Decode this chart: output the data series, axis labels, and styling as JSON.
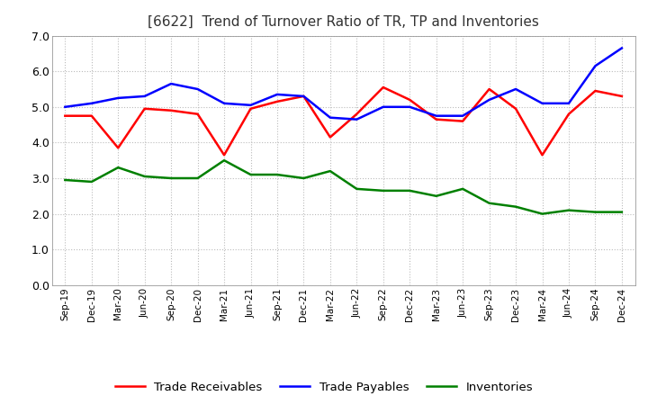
{
  "title": "[6622]  Trend of Turnover Ratio of TR, TP and Inventories",
  "x_labels": [
    "Sep-19",
    "Dec-19",
    "Mar-20",
    "Jun-20",
    "Sep-20",
    "Dec-20",
    "Mar-21",
    "Jun-21",
    "Sep-21",
    "Dec-21",
    "Mar-22",
    "Jun-22",
    "Sep-22",
    "Dec-22",
    "Mar-23",
    "Jun-23",
    "Sep-23",
    "Dec-23",
    "Mar-24",
    "Jun-24",
    "Sep-24",
    "Dec-24"
  ],
  "trade_receivables": [
    4.75,
    4.75,
    3.85,
    4.95,
    4.9,
    4.8,
    3.65,
    4.95,
    5.15,
    5.3,
    4.15,
    4.8,
    5.55,
    5.2,
    4.65,
    4.6,
    5.5,
    4.95,
    3.65,
    4.8,
    5.45,
    5.3
  ],
  "trade_payables": [
    5.0,
    5.1,
    5.25,
    5.3,
    5.65,
    5.5,
    5.1,
    5.05,
    5.35,
    5.3,
    4.7,
    4.65,
    5.0,
    5.0,
    4.75,
    4.75,
    5.2,
    5.5,
    5.1,
    5.1,
    6.15,
    6.65
  ],
  "inventories": [
    2.95,
    2.9,
    3.3,
    3.05,
    3.0,
    3.0,
    3.5,
    3.1,
    3.1,
    3.0,
    3.2,
    2.7,
    2.65,
    2.65,
    2.5,
    2.7,
    2.3,
    2.2,
    2.0,
    2.1,
    2.05,
    2.05
  ],
  "ylim": [
    0.0,
    7.0
  ],
  "yticks": [
    0.0,
    1.0,
    2.0,
    3.0,
    4.0,
    5.0,
    6.0,
    7.0
  ],
  "ytick_labels": [
    "0.0",
    "1.0",
    "2.0",
    "3.0",
    "4.0",
    "5.0",
    "6.0",
    "7.0"
  ],
  "colors": {
    "trade_receivables": "#ff0000",
    "trade_payables": "#0000ff",
    "inventories": "#008000"
  },
  "legend_labels": [
    "Trade Receivables",
    "Trade Payables",
    "Inventories"
  ],
  "background_color": "#ffffff",
  "plot_bg_color": "#ffffff"
}
